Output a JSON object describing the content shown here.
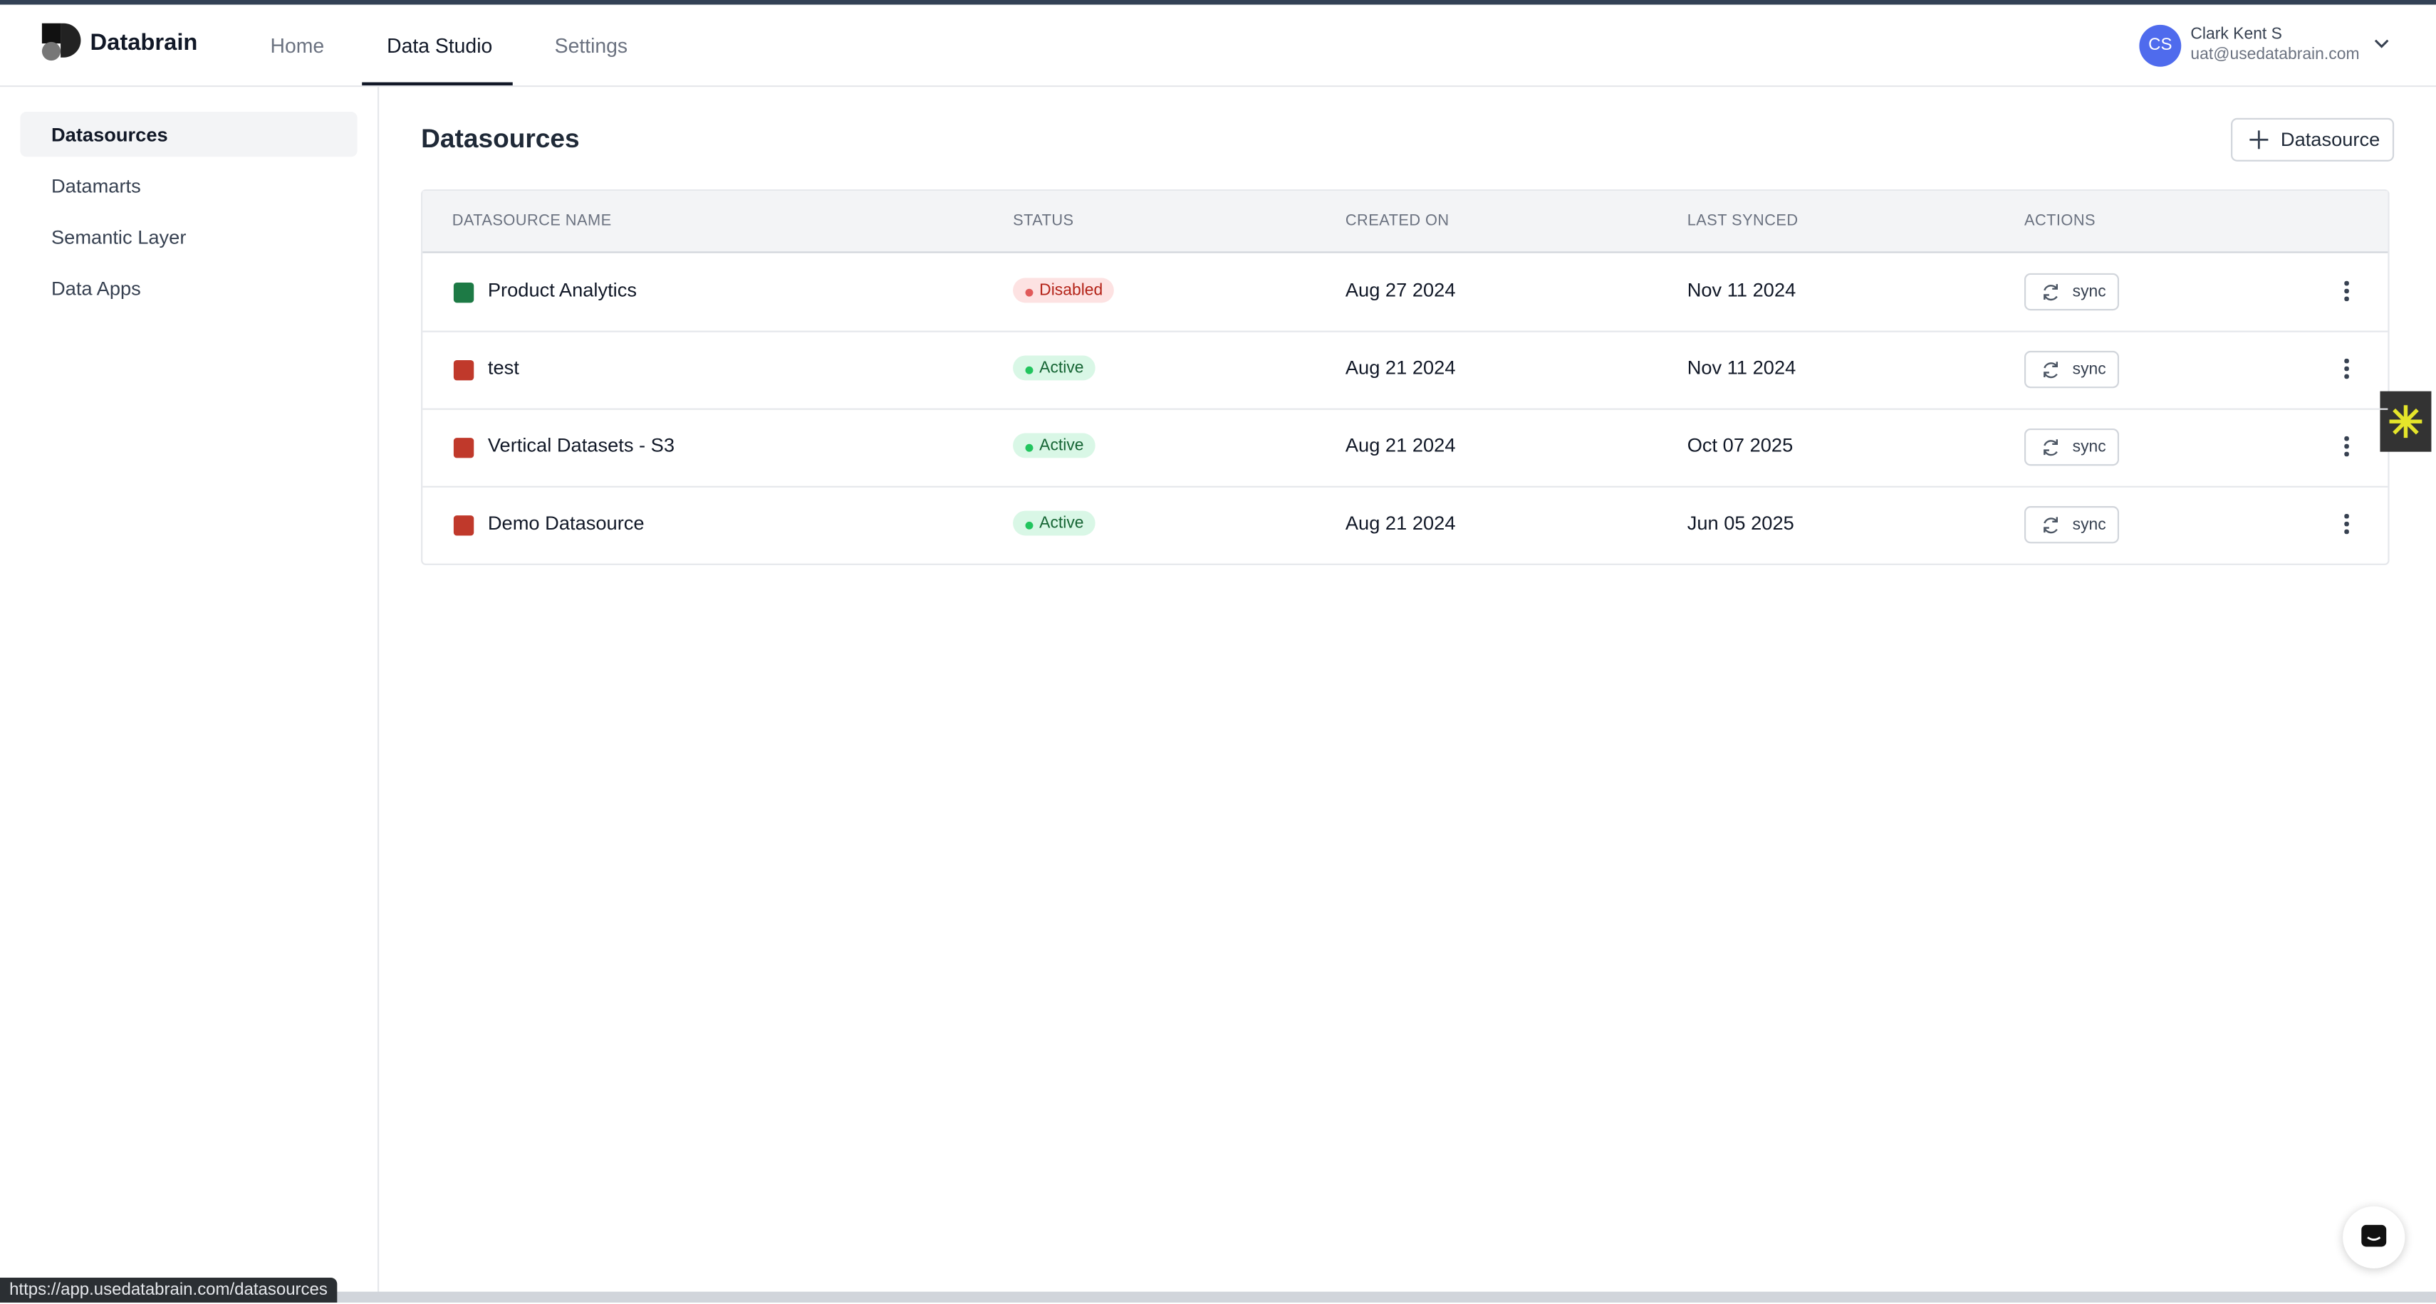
{
  "header": {
    "brand": "Databrain",
    "nav": [
      "Home",
      "Data Studio",
      "Settings"
    ],
    "user": {
      "initials": "CS",
      "name": "Clark Kent S",
      "email": "uat@usedatabrain.com"
    }
  },
  "sidebar": {
    "items": [
      "Datasources",
      "Datamarts",
      "Semantic Layer",
      "Data Apps"
    ]
  },
  "main": {
    "title": "Datasources",
    "add_button": "Datasource",
    "table": {
      "columns": [
        "DATASOURCE NAME",
        "STATUS",
        "CREATED ON",
        "LAST SYNCED",
        "ACTIONS"
      ],
      "rows": [
        [
          "Product Analytics",
          "Disabled",
          "Aug 27 2024",
          "Nov 11 2024",
          "sync"
        ],
        [
          "test",
          "Active",
          "Aug 21 2024",
          "Nov 11 2024",
          "sync"
        ],
        [
          "Vertical Datasets - S3",
          "Active",
          "Aug 21 2024",
          "Oct 07 2025",
          "sync"
        ],
        [
          "Demo Datasource",
          "Active",
          "Aug 21 2024",
          "Jun 05 2025",
          "sync"
        ]
      ]
    }
  },
  "status_bar": {
    "url": "https://app.usedatabrain.com/datasources"
  }
}
